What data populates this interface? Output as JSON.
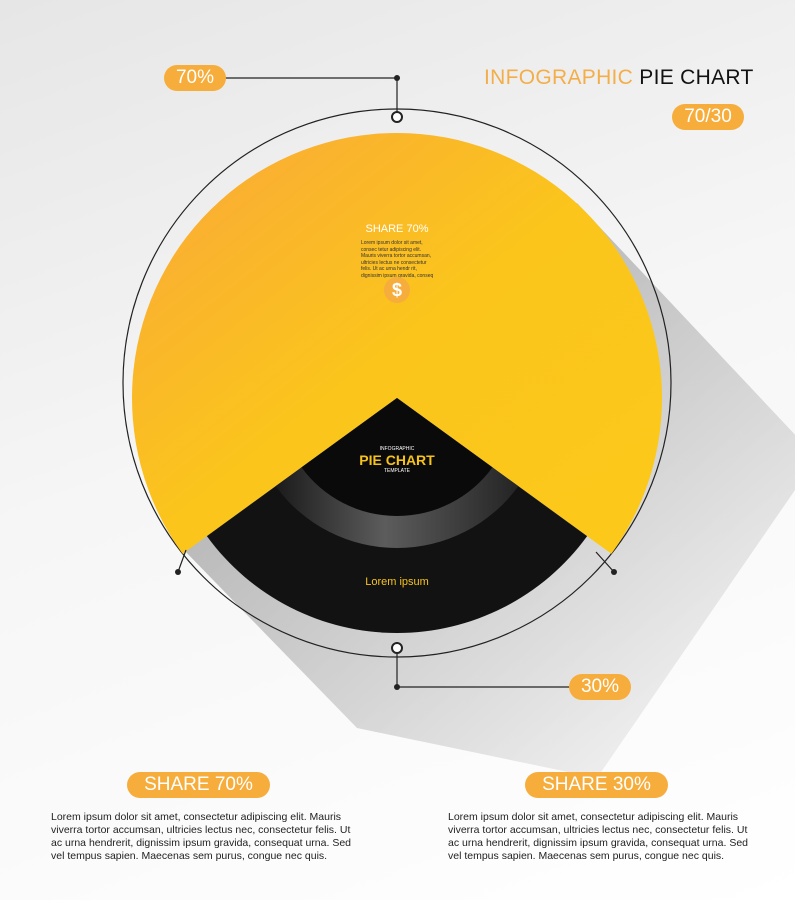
{
  "title": {
    "part1": "INFOGRAPHIC",
    "part2": "PIE CHART",
    "ratio": "70/30"
  },
  "colors": {
    "accent": "#f6ad3c",
    "yellow": "#fbc51c",
    "orange": "#f9a73a",
    "black": "#111111"
  },
  "chart_data": {
    "type": "pie",
    "categories": [
      "SHARE 70%",
      "SHARE 30%"
    ],
    "values": [
      70,
      30
    ],
    "labels": [
      "70%",
      "30%"
    ],
    "colors": [
      "#fbc51c",
      "#111111"
    ]
  },
  "slice_yellow": {
    "heading": "SHARE 70%",
    "text": "Lorem ipsum dolor sit amet, consec tetur adipiscing elit. Mauris viverra tortor accumsan, ultricies lectus ne consectetur felis. Ut ac urna hendr rit, dignissim ipsum gravida, conseq",
    "icon": "dollar-icon",
    "icon_glyph": "$"
  },
  "slice_black": {
    "small_top": "INFOGRAPHIC",
    "main": "PIE CHART",
    "small_bottom": "TEMPLATE",
    "caption": "Lorem ipsum"
  },
  "bottom": [
    {
      "heading": "SHARE 70%",
      "text": "Lorem ipsum dolor sit amet, consectetur adipiscing elit. Mauris viverra tortor accumsan, ultricies lectus nec, consectetur felis. Ut ac urna hendrerit, dignissim ipsum gravida, consequat urna. Sed vel tempus sapien. Maecenas sem purus, congue nec quis."
    },
    {
      "heading": "SHARE 30%",
      "text": "Lorem ipsum dolor sit amet, consectetur adipiscing elit. Mauris viverra tortor accumsan, ultricies lectus nec, consectetur felis. Ut ac urna hendrerit, dignissim ipsum gravida, consequat urna. Sed vel tempus sapien. Maecenas sem purus, congue nec quis."
    }
  ]
}
